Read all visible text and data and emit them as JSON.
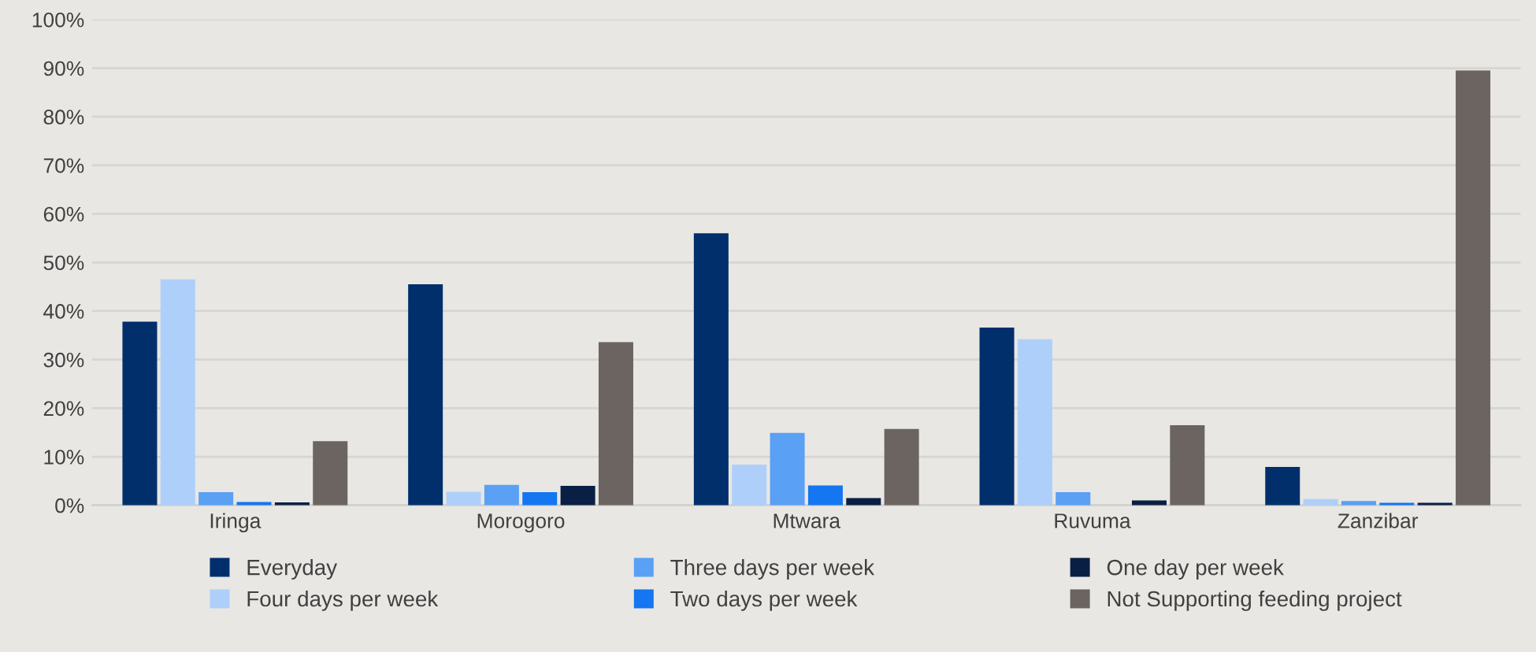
{
  "chart_data": {
    "type": "bar",
    "categories": [
      "Iringa",
      "Morogoro",
      "Mtwara",
      "Ruvuma",
      "Zanzibar"
    ],
    "series": [
      {
        "name": "Everyday",
        "color": "#002f6c",
        "values": [
          37.8,
          45.5,
          56.0,
          36.6,
          7.9
        ]
      },
      {
        "name": "Four days per week",
        "color": "#aecffa",
        "values": [
          46.5,
          2.8,
          8.4,
          34.2,
          1.3
        ]
      },
      {
        "name": "Three days per week",
        "color": "#5aa0f5",
        "values": [
          2.7,
          4.2,
          14.9,
          2.7,
          0.9
        ]
      },
      {
        "name": "Two days per week",
        "color": "#1476f0",
        "values": [
          0.7,
          2.7,
          4.1,
          0,
          0.5
        ]
      },
      {
        "name": "One day per week",
        "color": "#0a1f44",
        "values": [
          0.6,
          4.0,
          1.5,
          1.0,
          0.5
        ]
      },
      {
        "name": "Not Supporting feeding project",
        "color": "#6b6461",
        "values": [
          13.2,
          33.6,
          15.7,
          16.5,
          89.5
        ]
      }
    ],
    "ylim": [
      0,
      100
    ],
    "yticks": [
      {
        "value": 0,
        "label": "0%"
      },
      {
        "value": 10,
        "label": "10%"
      },
      {
        "value": 20,
        "label": "20%"
      },
      {
        "value": 30,
        "label": "30%"
      },
      {
        "value": 40,
        "label": "40%"
      },
      {
        "value": 50,
        "label": "50%"
      },
      {
        "value": 60,
        "label": "60%"
      },
      {
        "value": 70,
        "label": "70%"
      },
      {
        "value": 80,
        "label": "80%"
      },
      {
        "value": 90,
        "label": "90%"
      },
      {
        "value": 100,
        "label": "100%"
      }
    ],
    "grid": "y",
    "legend": "bottom"
  }
}
